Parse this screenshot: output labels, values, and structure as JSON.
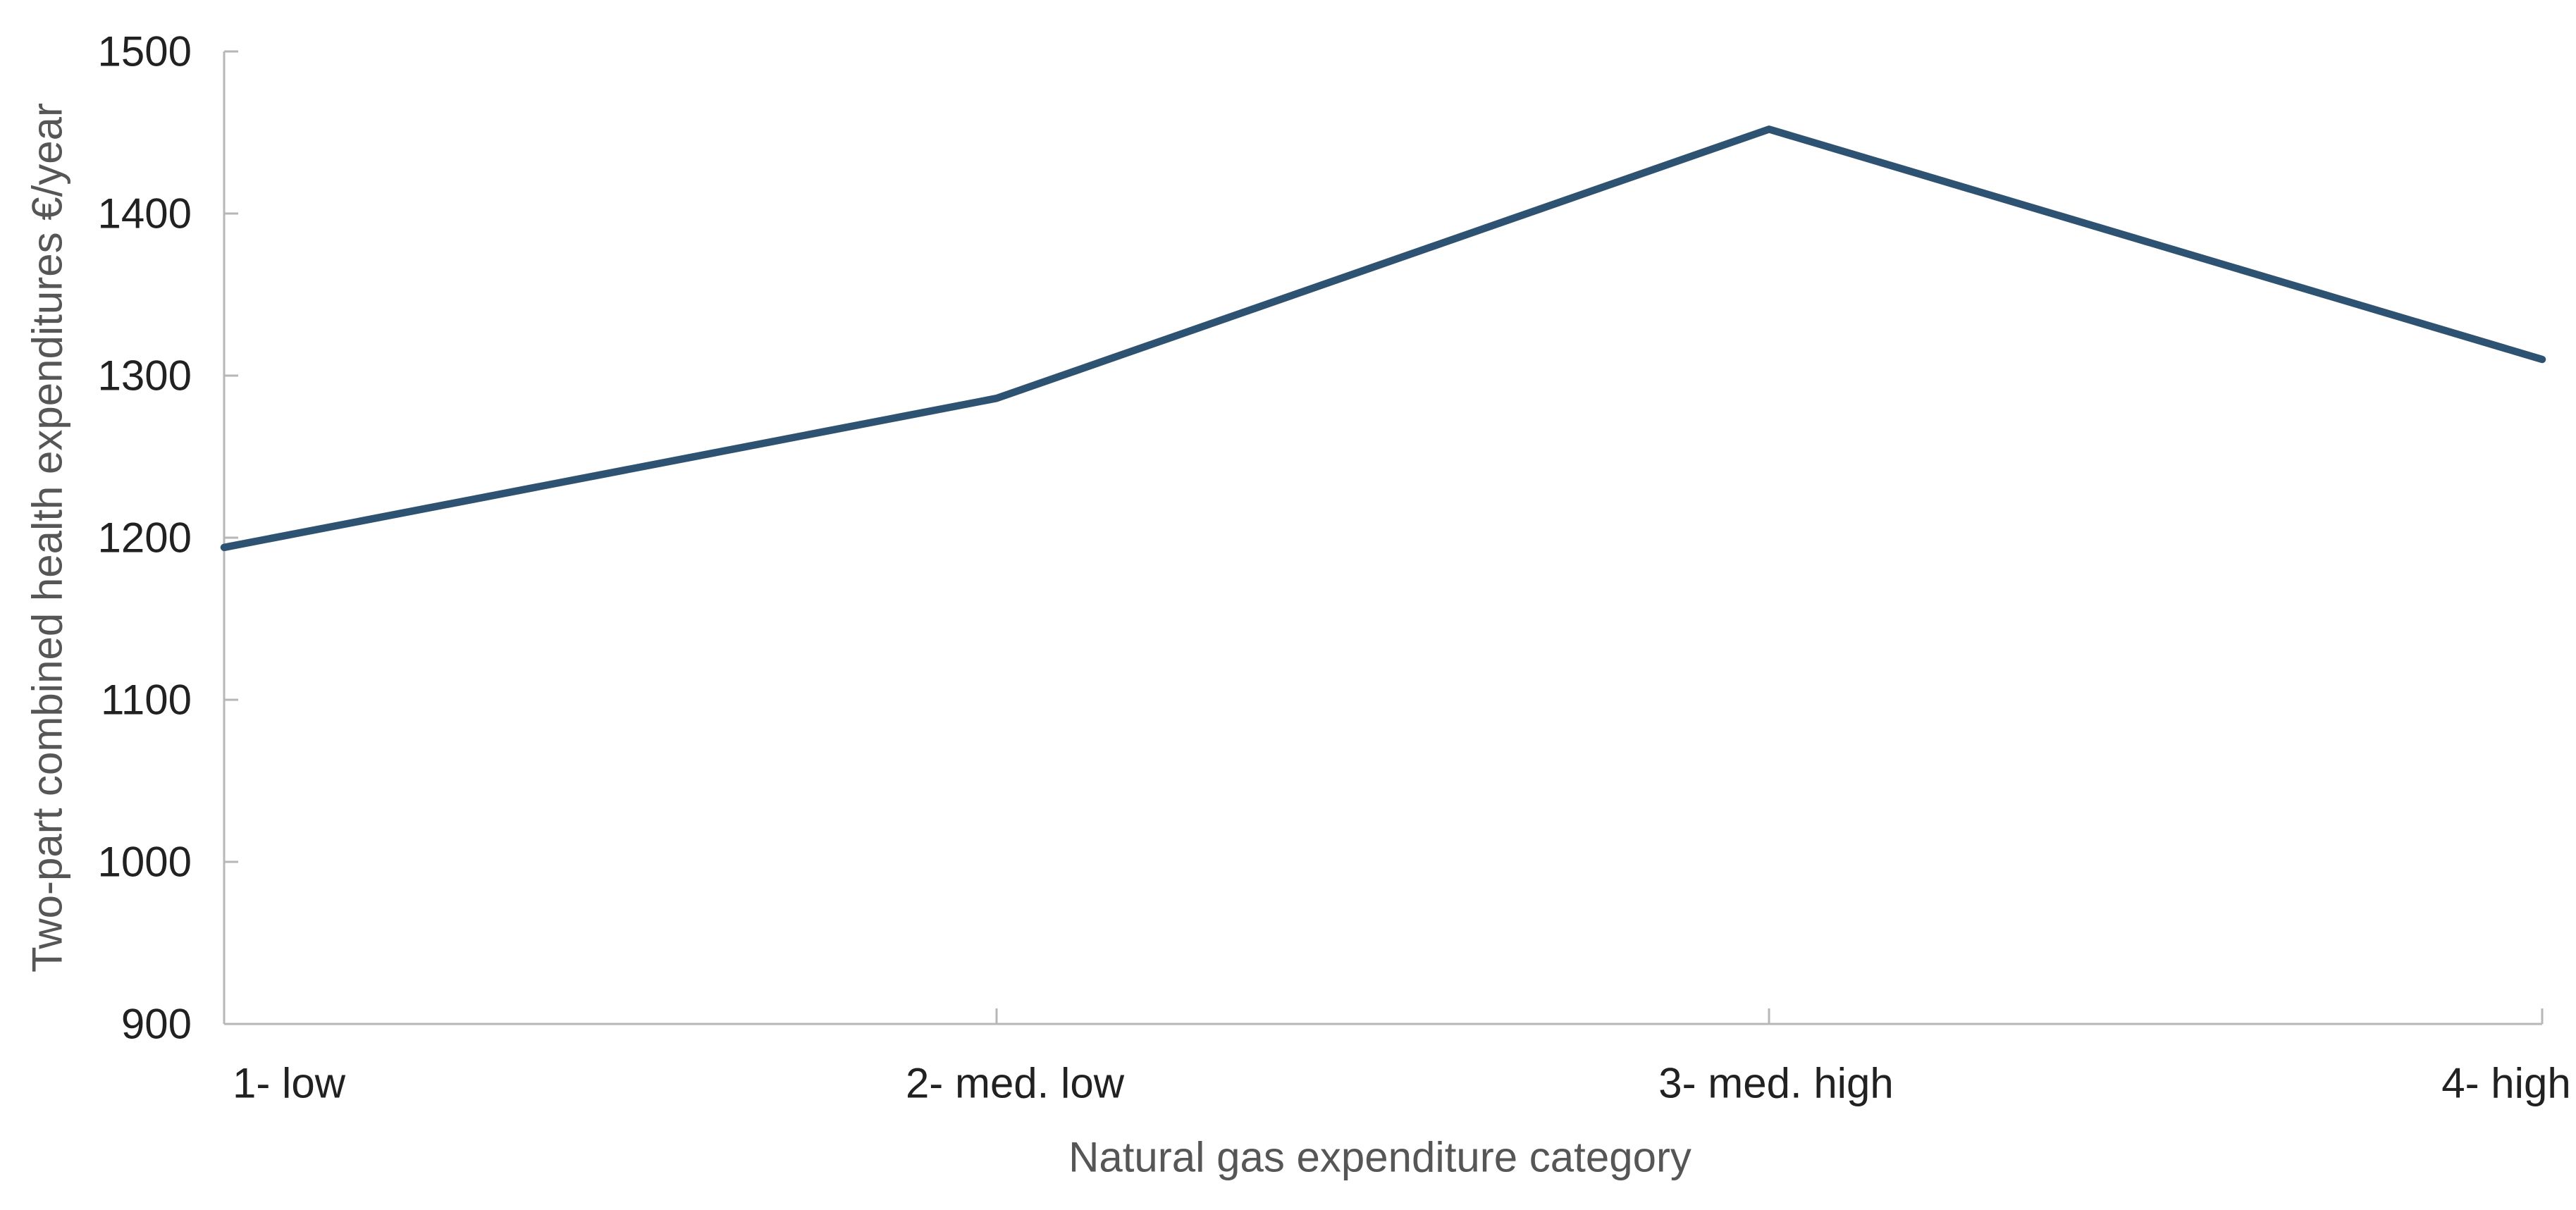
{
  "chart_data": {
    "type": "line",
    "title": "",
    "xlabel": "Natural gas expenditure category",
    "ylabel": "Two-part combined health expenditures €/year",
    "categories": [
      "1- low",
      "2- med. low",
      "3- med. high",
      "4- high"
    ],
    "values": [
      1194,
      1286,
      1452,
      1310
    ],
    "yticks": [
      900,
      1000,
      1100,
      1200,
      1300,
      1400,
      1500
    ],
    "ylim": [
      900,
      1500
    ],
    "grid": false,
    "legend_position": "none",
    "colors": {
      "line": "#2E5271",
      "axis": "#B7B7B7",
      "tick_label": "#212121",
      "axis_title": "#565656"
    }
  }
}
